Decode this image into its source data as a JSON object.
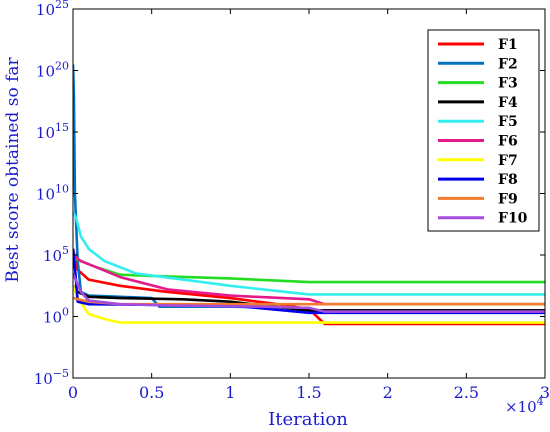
{
  "chart_data": {
    "type": "line",
    "title": "",
    "xlabel": "Iteration",
    "ylabel": "Best score obtained so far",
    "x_multiplier_label": "×10",
    "x_multiplier_exponent": "4",
    "x_scale_factor": 10000,
    "xlim": [
      0,
      3
    ],
    "ylim_exponent": [
      -5,
      25
    ],
    "yscale": "log",
    "x_ticks": [
      {
        "value": 0,
        "label": "0"
      },
      {
        "value": 0.5,
        "label": "0.5"
      },
      {
        "value": 1,
        "label": "1"
      },
      {
        "value": 1.5,
        "label": "1.5"
      },
      {
        "value": 2,
        "label": "2"
      },
      {
        "value": 2.5,
        "label": "2.5"
      },
      {
        "value": 3,
        "label": "3"
      }
    ],
    "y_ticks": [
      {
        "exp": -5,
        "base": "10",
        "power": "−5"
      },
      {
        "exp": 0,
        "base": "10",
        "power": "0"
      },
      {
        "exp": 5,
        "base": "10",
        "power": "5"
      },
      {
        "exp": 10,
        "base": "10",
        "power": "10"
      },
      {
        "exp": 15,
        "base": "10",
        "power": "15"
      },
      {
        "exp": 20,
        "base": "10",
        "power": "20"
      },
      {
        "exp": 25,
        "base": "10",
        "power": "25"
      }
    ],
    "legend_position": "top-right",
    "grid": false,
    "series": [
      {
        "name": "F1",
        "color": "#ff0000",
        "points": [
          [
            0,
            5.5
          ],
          [
            0.03,
            3.8
          ],
          [
            0.1,
            3.0
          ],
          [
            0.3,
            2.5
          ],
          [
            0.6,
            2.0
          ],
          [
            1.0,
            1.5
          ],
          [
            1.3,
            1.0
          ],
          [
            1.5,
            0.6
          ],
          [
            1.6,
            -0.6
          ],
          [
            2.0,
            -0.6
          ],
          [
            3.0,
            -0.6
          ]
        ]
      },
      {
        "name": "F2",
        "color": "#0072bd",
        "points": [
          [
            0,
            20.5
          ],
          [
            0.006,
            18
          ],
          [
            0.012,
            10
          ],
          [
            0.03,
            4.5
          ],
          [
            0.05,
            2.0
          ],
          [
            0.1,
            1.7
          ],
          [
            0.3,
            1.6
          ],
          [
            0.5,
            1.5
          ],
          [
            0.55,
            0.8
          ],
          [
            1.0,
            0.8
          ],
          [
            1.5,
            0.7
          ],
          [
            1.55,
            0.5
          ],
          [
            3.0,
            0.5
          ]
        ]
      },
      {
        "name": "F3",
        "color": "#22dd22",
        "points": [
          [
            0,
            4.8
          ],
          [
            0.05,
            4.5
          ],
          [
            0.15,
            4.0
          ],
          [
            0.3,
            3.4
          ],
          [
            0.5,
            3.3
          ],
          [
            1.0,
            3.1
          ],
          [
            1.5,
            2.8
          ],
          [
            3.0,
            2.8
          ]
        ]
      },
      {
        "name": "F4",
        "color": "#000000",
        "points": [
          [
            0,
            2.5
          ],
          [
            0.03,
            2.0
          ],
          [
            0.1,
            1.6
          ],
          [
            0.3,
            1.5
          ],
          [
            0.7,
            1.4
          ],
          [
            1.0,
            1.2
          ],
          [
            1.2,
            0.9
          ],
          [
            1.5,
            0.5
          ],
          [
            3.0,
            0.5
          ]
        ]
      },
      {
        "name": "F5",
        "color": "#33eeee",
        "points": [
          [
            0,
            8.5
          ],
          [
            0.02,
            8.0
          ],
          [
            0.05,
            6.5
          ],
          [
            0.1,
            5.5
          ],
          [
            0.2,
            4.5
          ],
          [
            0.4,
            3.5
          ],
          [
            0.7,
            3.0
          ],
          [
            1.0,
            2.5
          ],
          [
            1.5,
            1.8
          ],
          [
            3.0,
            1.8
          ]
        ]
      },
      {
        "name": "F6",
        "color": "#e6198c",
        "points": [
          [
            0,
            5.0
          ],
          [
            0.05,
            4.5
          ],
          [
            0.15,
            4.0
          ],
          [
            0.3,
            3.2
          ],
          [
            0.6,
            2.2
          ],
          [
            1.0,
            1.7
          ],
          [
            1.5,
            1.4
          ],
          [
            1.6,
            1.0
          ],
          [
            3.0,
            1.0
          ]
        ]
      },
      {
        "name": "F7",
        "color": "#ffff00",
        "points": [
          [
            0,
            2.5
          ],
          [
            0.03,
            1.5
          ],
          [
            0.1,
            0.2
          ],
          [
            0.2,
            -0.2
          ],
          [
            0.3,
            -0.5
          ],
          [
            0.5,
            -0.5
          ],
          [
            3.0,
            -0.5
          ]
        ]
      },
      {
        "name": "F8",
        "color": "#0000ee",
        "points": [
          [
            0,
            5.5
          ],
          [
            0.015,
            3.5
          ],
          [
            0.03,
            1.2
          ],
          [
            0.1,
            1.0
          ],
          [
            1.0,
            0.9
          ],
          [
            1.5,
            0.3
          ],
          [
            3.0,
            0.3
          ]
        ]
      },
      {
        "name": "F9",
        "color": "#f07c30",
        "points": [
          [
            0,
            1.5
          ],
          [
            0.1,
            1.2
          ],
          [
            0.3,
            1.0
          ],
          [
            3.0,
            1.0
          ]
        ]
      },
      {
        "name": "F10",
        "color": "#a64ddd",
        "points": [
          [
            0,
            3.5
          ],
          [
            0.05,
            2.0
          ],
          [
            0.1,
            1.3
          ],
          [
            0.3,
            1.0
          ],
          [
            0.6,
            0.9
          ],
          [
            1.2,
            0.8
          ],
          [
            1.5,
            0.7
          ],
          [
            1.6,
            0.4
          ],
          [
            3.0,
            0.4
          ]
        ]
      }
    ]
  }
}
